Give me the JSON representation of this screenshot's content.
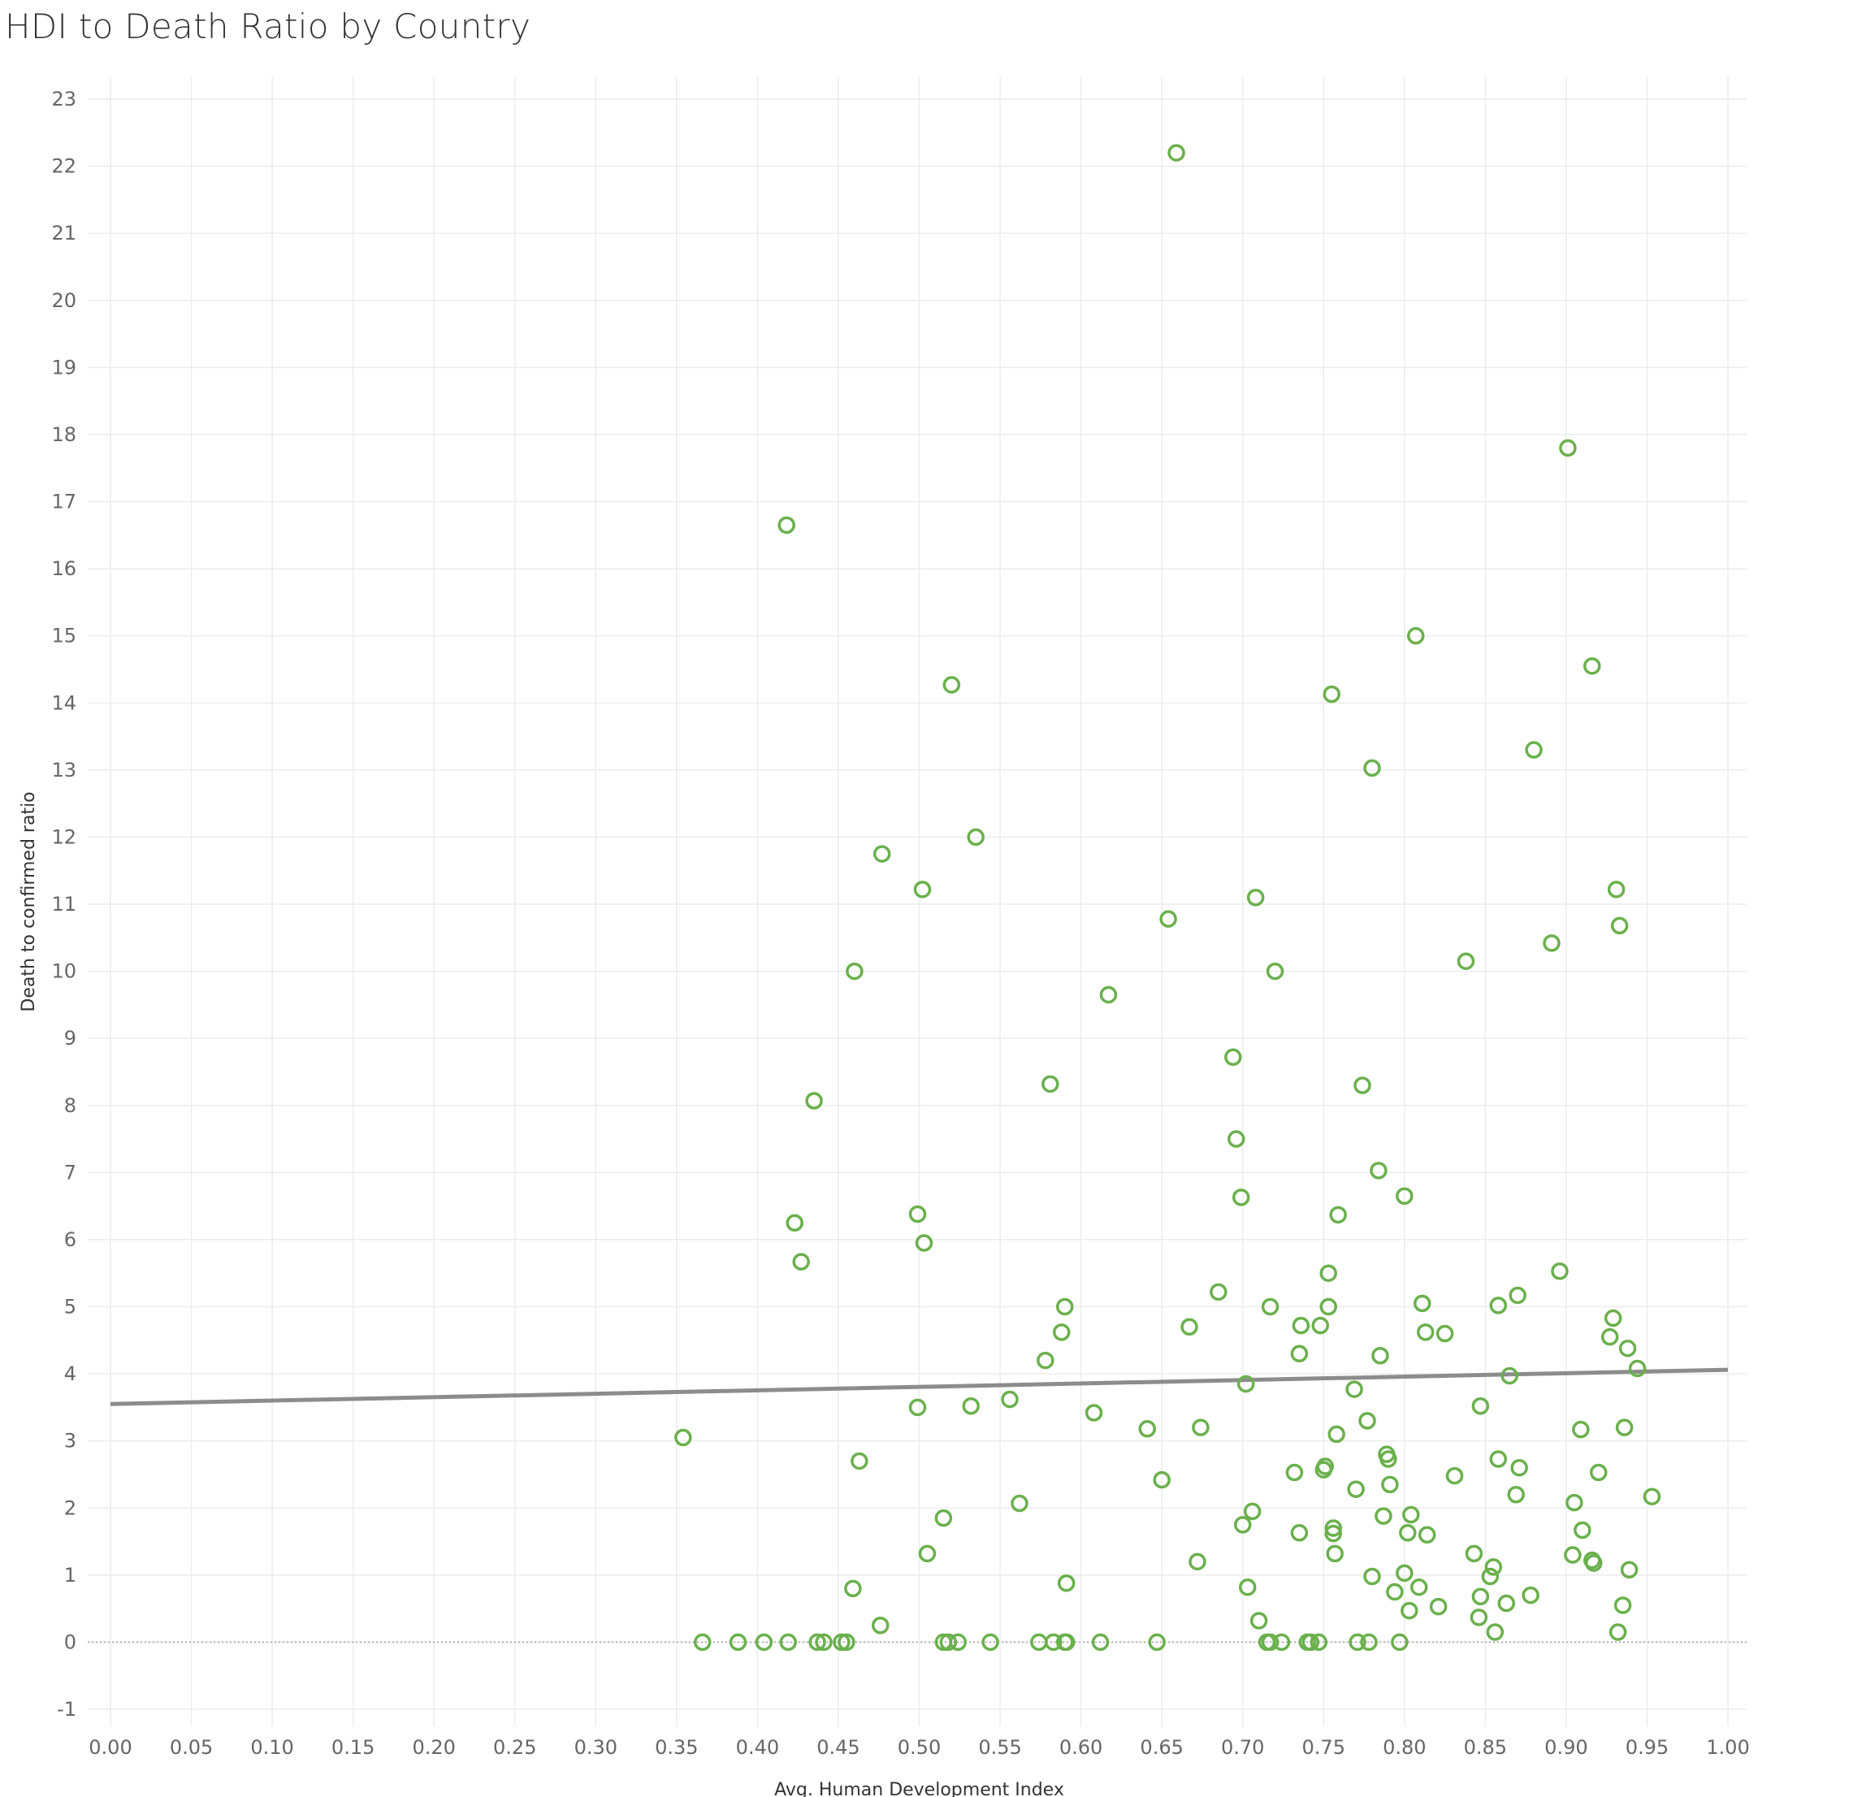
{
  "title": "HDI to Death Ratio by Country",
  "colors": {
    "point": "#6ab04c",
    "trend": "#8c8c8c",
    "grid": "#ececec",
    "zero": "#a0a0a0",
    "tick": "#666666"
  },
  "chart_data": {
    "type": "scatter",
    "title": "HDI to Death Ratio by Country",
    "xlabel": "Avg. Human Development Index",
    "ylabel": "Death to confirmed ratio",
    "xlim": [
      0.0,
      1.0
    ],
    "ylim": [
      -1,
      23
    ],
    "x_ticks": [
      "0.00",
      "0.05",
      "0.10",
      "0.15",
      "0.20",
      "0.25",
      "0.30",
      "0.35",
      "0.40",
      "0.45",
      "0.50",
      "0.55",
      "0.60",
      "0.65",
      "0.70",
      "0.75",
      "0.80",
      "0.85",
      "0.90",
      "0.95",
      "1.00"
    ],
    "y_ticks": [
      "-1",
      "0",
      "1",
      "2",
      "3",
      "4",
      "5",
      "6",
      "7",
      "8",
      "9",
      "10",
      "11",
      "12",
      "13",
      "14",
      "15",
      "16",
      "17",
      "18",
      "19",
      "20",
      "21",
      "22",
      "23"
    ],
    "grid": true,
    "marker": "open-circle",
    "trend_line": {
      "x": [
        0.0,
        1.0
      ],
      "y": [
        3.55,
        4.06
      ]
    },
    "points": [
      [
        0.659,
        22.2
      ],
      [
        0.901,
        17.8
      ],
      [
        0.418,
        16.65
      ],
      [
        0.807,
        15.0
      ],
      [
        0.916,
        14.55
      ],
      [
        0.52,
        14.27
      ],
      [
        0.755,
        14.13
      ],
      [
        0.88,
        13.3
      ],
      [
        0.78,
        13.03
      ],
      [
        0.535,
        12.0
      ],
      [
        0.477,
        11.75
      ],
      [
        0.502,
        11.22
      ],
      [
        0.931,
        11.22
      ],
      [
        0.708,
        11.1
      ],
      [
        0.654,
        10.78
      ],
      [
        0.933,
        10.68
      ],
      [
        0.891,
        10.42
      ],
      [
        0.838,
        10.15
      ],
      [
        0.46,
        10.0
      ],
      [
        0.72,
        10.0
      ],
      [
        0.617,
        9.65
      ],
      [
        0.694,
        8.72
      ],
      [
        0.581,
        8.32
      ],
      [
        0.774,
        8.3
      ],
      [
        0.435,
        8.07
      ],
      [
        0.696,
        7.5
      ],
      [
        0.784,
        7.03
      ],
      [
        0.699,
        6.63
      ],
      [
        0.8,
        6.65
      ],
      [
        0.499,
        6.38
      ],
      [
        0.759,
        6.37
      ],
      [
        0.423,
        6.25
      ],
      [
        0.503,
        5.95
      ],
      [
        0.427,
        5.67
      ],
      [
        0.896,
        5.53
      ],
      [
        0.753,
        5.5
      ],
      [
        0.685,
        5.22
      ],
      [
        0.87,
        5.17
      ],
      [
        0.811,
        5.05
      ],
      [
        0.858,
        5.02
      ],
      [
        0.59,
        5.0
      ],
      [
        0.717,
        5.0
      ],
      [
        0.753,
        5.0
      ],
      [
        0.929,
        4.83
      ],
      [
        0.667,
        4.7
      ],
      [
        0.736,
        4.72
      ],
      [
        0.748,
        4.72
      ],
      [
        0.588,
        4.62
      ],
      [
        0.813,
        4.62
      ],
      [
        0.825,
        4.6
      ],
      [
        0.927,
        4.55
      ],
      [
        0.938,
        4.38
      ],
      [
        0.735,
        4.3
      ],
      [
        0.785,
        4.27
      ],
      [
        0.578,
        4.2
      ],
      [
        0.944,
        4.08
      ],
      [
        0.865,
        3.97
      ],
      [
        0.702,
        3.85
      ],
      [
        0.769,
        3.77
      ],
      [
        0.556,
        3.62
      ],
      [
        0.499,
        3.5
      ],
      [
        0.532,
        3.52
      ],
      [
        0.847,
        3.52
      ],
      [
        0.608,
        3.42
      ],
      [
        0.777,
        3.3
      ],
      [
        0.641,
        3.18
      ],
      [
        0.674,
        3.2
      ],
      [
        0.909,
        3.17
      ],
      [
        0.936,
        3.2
      ],
      [
        0.758,
        3.1
      ],
      [
        0.354,
        3.05
      ],
      [
        0.789,
        2.8
      ],
      [
        0.79,
        2.73
      ],
      [
        0.463,
        2.7
      ],
      [
        0.858,
        2.73
      ],
      [
        0.751,
        2.62
      ],
      [
        0.871,
        2.6
      ],
      [
        0.732,
        2.53
      ],
      [
        0.75,
        2.57
      ],
      [
        0.92,
        2.53
      ],
      [
        0.831,
        2.48
      ],
      [
        0.65,
        2.42
      ],
      [
        0.791,
        2.35
      ],
      [
        0.77,
        2.28
      ],
      [
        0.869,
        2.2
      ],
      [
        0.953,
        2.17
      ],
      [
        0.562,
        2.07
      ],
      [
        0.905,
        2.08
      ],
      [
        0.706,
        1.95
      ],
      [
        0.515,
        1.85
      ],
      [
        0.787,
        1.88
      ],
      [
        0.804,
        1.9
      ],
      [
        0.7,
        1.75
      ],
      [
        0.756,
        1.7
      ],
      [
        0.91,
        1.67
      ],
      [
        0.735,
        1.63
      ],
      [
        0.756,
        1.62
      ],
      [
        0.802,
        1.63
      ],
      [
        0.814,
        1.6
      ],
      [
        0.505,
        1.32
      ],
      [
        0.757,
        1.32
      ],
      [
        0.843,
        1.32
      ],
      [
        0.904,
        1.3
      ],
      [
        0.672,
        1.2
      ],
      [
        0.916,
        1.22
      ],
      [
        0.917,
        1.18
      ],
      [
        0.855,
        1.12
      ],
      [
        0.939,
        1.08
      ],
      [
        0.8,
        1.03
      ],
      [
        0.78,
        0.98
      ],
      [
        0.853,
        0.98
      ],
      [
        0.591,
        0.88
      ],
      [
        0.459,
        0.8
      ],
      [
        0.703,
        0.82
      ],
      [
        0.809,
        0.82
      ],
      [
        0.794,
        0.75
      ],
      [
        0.878,
        0.7
      ],
      [
        0.847,
        0.68
      ],
      [
        0.863,
        0.58
      ],
      [
        0.935,
        0.55
      ],
      [
        0.821,
        0.53
      ],
      [
        0.803,
        0.47
      ],
      [
        0.846,
        0.37
      ],
      [
        0.71,
        0.32
      ],
      [
        0.476,
        0.25
      ],
      [
        0.856,
        0.15
      ],
      [
        0.932,
        0.15
      ],
      [
        0.366,
        0.0
      ],
      [
        0.388,
        0.0
      ],
      [
        0.404,
        0.0
      ],
      [
        0.419,
        0.0
      ],
      [
        0.437,
        0.0
      ],
      [
        0.441,
        0.0
      ],
      [
        0.452,
        0.0
      ],
      [
        0.455,
        0.0
      ],
      [
        0.515,
        0.0
      ],
      [
        0.518,
        0.0
      ],
      [
        0.524,
        0.0
      ],
      [
        0.544,
        0.0
      ],
      [
        0.574,
        0.0
      ],
      [
        0.583,
        0.0
      ],
      [
        0.59,
        0.0
      ],
      [
        0.591,
        0.0
      ],
      [
        0.612,
        0.0
      ],
      [
        0.647,
        0.0
      ],
      [
        0.715,
        0.0
      ],
      [
        0.717,
        0.0
      ],
      [
        0.724,
        0.0
      ],
      [
        0.74,
        0.0
      ],
      [
        0.742,
        0.0
      ],
      [
        0.747,
        0.0
      ],
      [
        0.771,
        0.0
      ],
      [
        0.778,
        0.0
      ],
      [
        0.797,
        0.0
      ]
    ]
  }
}
